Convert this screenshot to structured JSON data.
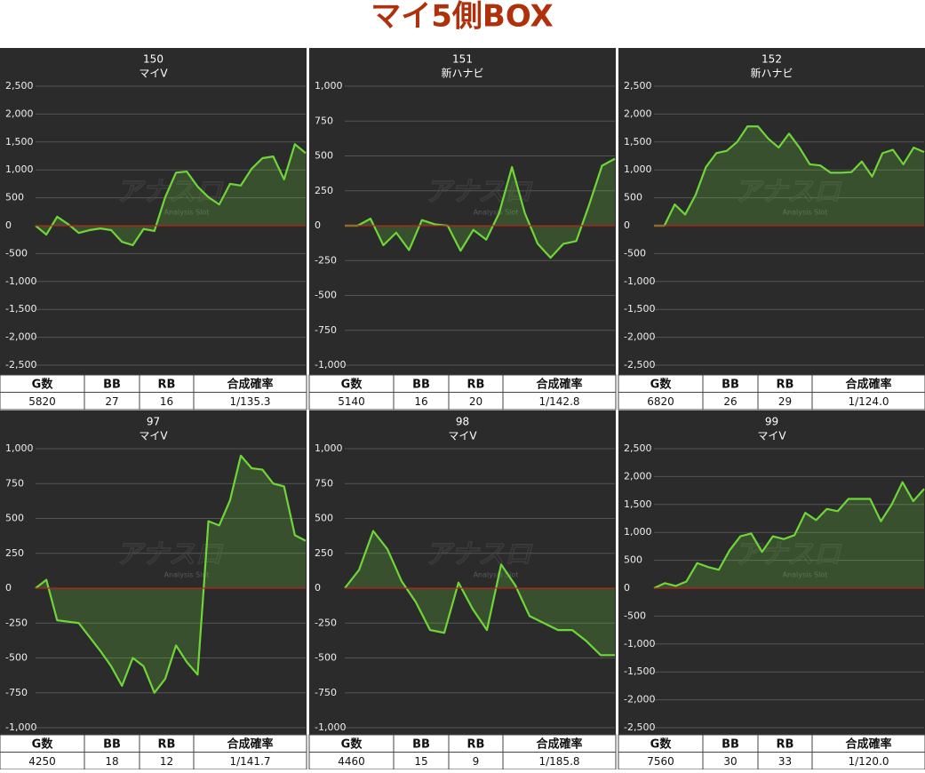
{
  "title": "マイ5側BOX",
  "watermark": "アナスロ",
  "watermark_sub": "Analysis Slot",
  "chart_data": [
    {
      "type": "line",
      "title": "150",
      "subtitle": "マイV",
      "color": "#6fd63a",
      "values": [
        0,
        -160,
        160,
        30,
        -130,
        -80,
        -50,
        -80,
        -290,
        -350,
        -60,
        -95,
        510,
        950,
        970,
        700,
        510,
        380,
        750,
        720,
        1020,
        1210,
        1240,
        830,
        1460,
        1300
      ],
      "ylim": [
        -2500,
        2500
      ],
      "yticks": [
        {
          "value": -2500,
          "label": "-2,500"
        },
        {
          "value": -2000,
          "label": "-2,000"
        },
        {
          "value": -1500,
          "label": "-1,500"
        },
        {
          "value": -1000,
          "label": "-1,000"
        },
        -500,
        0,
        500,
        {
          "value": 1000,
          "label": "1,000"
        },
        {
          "value": 1500,
          "label": "1,500"
        },
        {
          "value": 2000,
          "label": "2,000"
        },
        {
          "value": 2500,
          "label": "2,500"
        }
      ],
      "grid": true,
      "table": {
        "header": [
          "G数",
          "BB",
          "RB",
          "合成確率"
        ],
        "row": [
          5820,
          27,
          16,
          "1/135.3"
        ]
      }
    },
    {
      "type": "line",
      "title": "151",
      "subtitle": "新ハナビ",
      "color": "#6fd63a",
      "values": [
        0,
        0,
        50,
        -140,
        -50,
        -175,
        40,
        10,
        0,
        -180,
        -30,
        -100,
        90,
        420,
        90,
        -130,
        -230,
        -130,
        -110,
        150,
        430,
        480
      ],
      "ylim": [
        -1000,
        1000
      ],
      "yticks": [
        {
          "value": -1000,
          "label": "-1,000"
        },
        -750,
        -500,
        -250,
        0,
        250,
        500,
        750,
        {
          "value": 1000,
          "label": "1,000"
        }
      ],
      "grid": true,
      "table": {
        "header": [
          "G数",
          "BB",
          "RB",
          "合成確率"
        ],
        "row": [
          5140,
          16,
          20,
          "1/142.8"
        ]
      }
    },
    {
      "type": "line",
      "title": "152",
      "subtitle": "新ハナビ",
      "color": "#6fd63a",
      "values": [
        0,
        0,
        380,
        200,
        550,
        1050,
        1300,
        1340,
        1500,
        1780,
        1780,
        1560,
        1400,
        1650,
        1400,
        1100,
        1080,
        950,
        950,
        960,
        1150,
        880,
        1300,
        1360,
        1100,
        1400,
        1320
      ],
      "ylim": [
        -2500,
        2500
      ],
      "yticks": [
        {
          "value": -2500,
          "label": "-2,500"
        },
        {
          "value": -2000,
          "label": "-2,000"
        },
        {
          "value": -1500,
          "label": "-1,500"
        },
        {
          "value": -1000,
          "label": "-1,000"
        },
        -500,
        0,
        500,
        {
          "value": 1000,
          "label": "1,000"
        },
        {
          "value": 1500,
          "label": "1,500"
        },
        {
          "value": 2000,
          "label": "2,000"
        },
        {
          "value": 2500,
          "label": "2,500"
        }
      ],
      "grid": true,
      "table": {
        "header": [
          "G数",
          "BB",
          "RB",
          "合成確率"
        ],
        "row": [
          6820,
          26,
          29,
          "1/124.0"
        ]
      }
    },
    {
      "type": "line",
      "title": "97",
      "subtitle": "マイV",
      "color": "#6fd63a",
      "values": [
        0,
        60,
        -230,
        -240,
        -250,
        -350,
        -450,
        -560,
        -700,
        -500,
        -560,
        -750,
        -650,
        -410,
        -530,
        -620,
        480,
        450,
        630,
        950,
        860,
        850,
        750,
        730,
        380,
        340
      ],
      "ylim": [
        -1000,
        1000
      ],
      "yticks": [
        {
          "value": -1000,
          "label": "-1,000"
        },
        -750,
        -500,
        -250,
        0,
        250,
        500,
        750,
        {
          "value": 1000,
          "label": "1,000"
        }
      ],
      "grid": true,
      "table": {
        "header": [
          "G数",
          "BB",
          "RB",
          "合成確率"
        ],
        "row": [
          4250,
          18,
          12,
          "1/141.7"
        ]
      }
    },
    {
      "type": "line",
      "title": "98",
      "subtitle": "マイV",
      "color": "#6fd63a",
      "values": [
        0,
        130,
        410,
        280,
        50,
        -100,
        -300,
        -320,
        40,
        -150,
        -300,
        170,
        20,
        -200,
        -250,
        -300,
        -300,
        -380,
        -480,
        -480
      ],
      "ylim": [
        -1000,
        1000
      ],
      "yticks": [
        {
          "value": -1000,
          "label": "-1,000"
        },
        -750,
        -500,
        -250,
        0,
        250,
        500,
        750,
        {
          "value": 1000,
          "label": "1,000"
        }
      ],
      "grid": true,
      "table": {
        "header": [
          "G数",
          "BB",
          "RB",
          "合成確率"
        ],
        "row": [
          4460,
          15,
          9,
          "1/185.8"
        ]
      }
    },
    {
      "type": "line",
      "title": "99",
      "subtitle": "マイV",
      "color": "#6fd63a",
      "values": [
        0,
        90,
        40,
        120,
        450,
        380,
        330,
        680,
        930,
        980,
        650,
        930,
        880,
        950,
        1350,
        1220,
        1420,
        1380,
        1600,
        1600,
        1600,
        1200,
        1500,
        1900,
        1560,
        1780
      ],
      "ylim": [
        -2500,
        2500
      ],
      "yticks": [
        {
          "value": -2500,
          "label": "-2,500"
        },
        {
          "value": -2000,
          "label": "-2,000"
        },
        {
          "value": -1500,
          "label": "-1,500"
        },
        {
          "value": -1000,
          "label": "-1,000"
        },
        -500,
        0,
        500,
        {
          "value": 1000,
          "label": "1,000"
        },
        {
          "value": 1500,
          "label": "1,500"
        },
        {
          "value": 2000,
          "label": "2,000"
        },
        {
          "value": 2500,
          "label": "2,500"
        }
      ],
      "grid": true,
      "table": {
        "header": [
          "G数",
          "BB",
          "RB",
          "合成確率"
        ],
        "row": [
          7560,
          30,
          33,
          "1/120.0"
        ]
      }
    }
  ]
}
